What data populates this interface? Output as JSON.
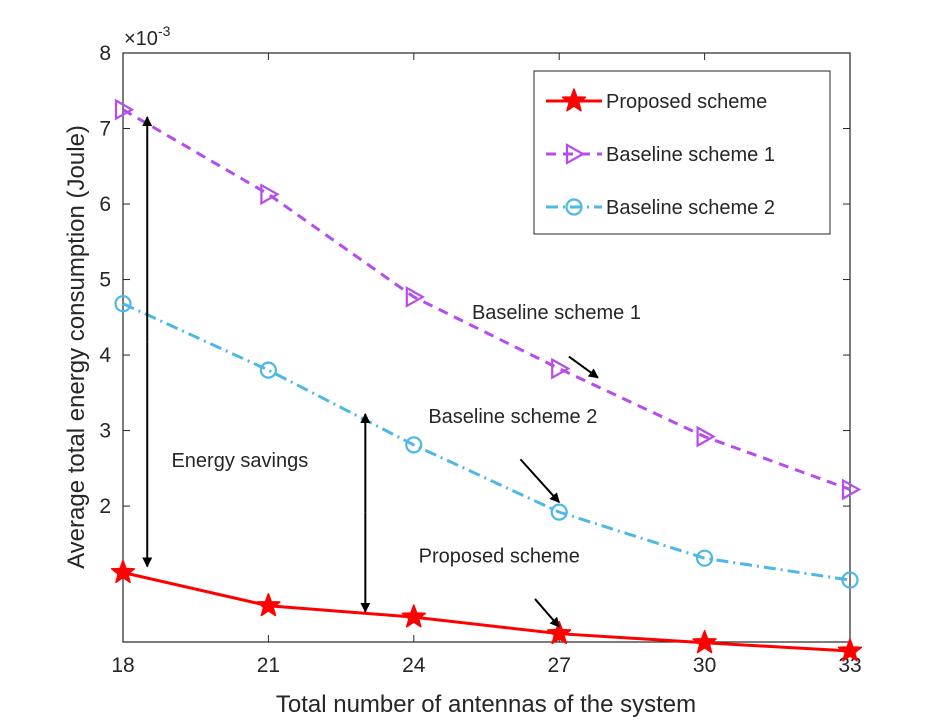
{
  "chart_data": {
    "type": "line",
    "xlabel": "Total number of antennas of the system",
    "ylabel": "Average total energy consumption (Joule)",
    "y_exponent_label": "×10",
    "y_exponent_power": "-3",
    "x": [
      18,
      21,
      24,
      27,
      30,
      33
    ],
    "xticks": [
      "18",
      "21",
      "24",
      "27",
      "30",
      "33"
    ],
    "yticks": [
      "2",
      "3",
      "4",
      "5",
      "6",
      "7",
      "8"
    ],
    "xlim": [
      18,
      33
    ],
    "ylim": [
      0.0002,
      0.008
    ],
    "grid": false,
    "legend_position": "top-right",
    "series": [
      {
        "name": "Proposed scheme",
        "values": [
          0.00112,
          0.00068,
          0.00053,
          0.00031,
          0.00019,
          8e-05
        ],
        "color": "#ff0000",
        "marker": "star",
        "dash": "solid"
      },
      {
        "name": "Baseline scheme 1",
        "values": [
          0.00725,
          0.00613,
          0.00477,
          0.00382,
          0.00292,
          0.00222
        ],
        "color": "#b64cf0",
        "marker": "triangle-right",
        "dash": "dashed"
      },
      {
        "name": "Baseline scheme 2",
        "values": [
          0.00468,
          0.0038,
          0.00281,
          0.00192,
          0.00131,
          0.00102
        ],
        "color": "#4db8e8",
        "marker": "circle",
        "dash": "dashdot"
      }
    ],
    "annotations": [
      {
        "text": "Baseline scheme 1",
        "x": 25.2,
        "y": 0.00448,
        "arrow_from": [
          27.2,
          0.00398
        ],
        "arrow_to": [
          27.8,
          0.0037
        ]
      },
      {
        "text": "Baseline scheme 2",
        "x": 24.3,
        "y": 0.0031,
        "arrow_from": [
          26.2,
          0.00262
        ],
        "arrow_to": [
          27.0,
          0.00205
        ]
      },
      {
        "text": "Proposed scheme",
        "x": 24.1,
        "y": 0.00125,
        "arrow_from": [
          26.5,
          0.00077
        ],
        "arrow_to": [
          27.0,
          0.0004
        ]
      },
      {
        "text": "Energy savings",
        "x": 19.0,
        "y": 0.00252,
        "double_arrows": [
          {
            "x": 18.5,
            "y_top": 0.00715,
            "y_bottom": 0.0012
          },
          {
            "x": 23.0,
            "y_top": 0.00322,
            "y_bottom": 0.0006
          }
        ]
      }
    ]
  }
}
